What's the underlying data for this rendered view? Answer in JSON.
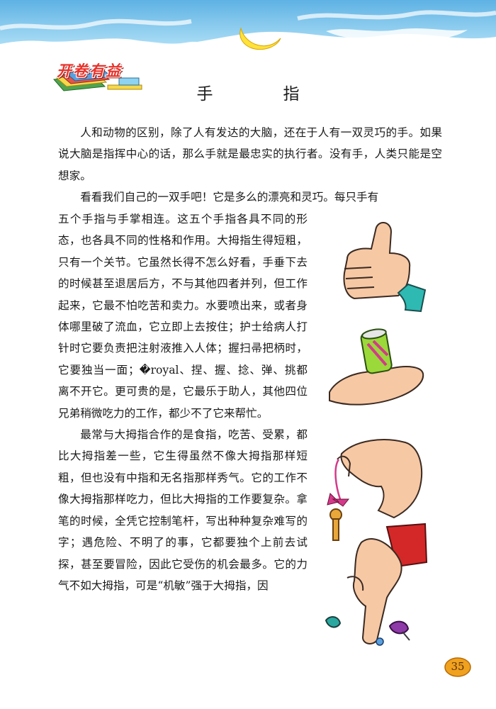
{
  "header": {
    "badge_text": "开卷有益",
    "title": "手　指"
  },
  "content": {
    "paragraphs_full": [
      "人和动物的区别，除了人有发达的大脑，还在于人有一双灵巧的手。如果说大脑是指挥中心的话，那么手就是最忠实的执行者。没有手，人类只能是空想家。",
      "看看我们自己的一双手吧！它是多么的漂亮和灵巧。每只手有"
    ],
    "paragraphs_narrow": [
      "五个手指与手掌相连。这五个手指各具不同的形态，也各具不同的性格和作用。大拇指生得短粗，只有一个关节。它虽然长得不怎么好看，手垂下去的时候甚至退居后方，不与其他四者并列，但工作起来，它最不怕吃苦和卖力。水要喷出来，或者身体哪里破了流血，它立即上去按住；护士给病人打针时它要负责把注射液推入人体；握扫帚把柄时，它要独当一面；�royal、捏、握、捻、弹、挑都离不开它。更可贵的是，它最乐于助人，其他四位兄弟稍微吃力的工作，都少不了它来帮忙。",
      "最常与大拇指合作的是食指，吃苦、受累，都比大拇指差一些，它生得虽然不像大拇指那样短粗，但也没有中指和无名指那样秀气。它的工作不像大拇指那样吃力，但比大拇指的工作要复杂。拿笔的时候，全凭它控制笔杆，写出种种复杂难写的字；遇危险、不明了的事，它都要独个上前去试探，甚至要冒险，因此它受伤的机会最多。它的力气不如大拇指，可是“机敏”强于大拇指，因"
    ]
  },
  "footer": {
    "page_number": "35"
  },
  "colors": {
    "sky": "#6ab9e6",
    "moon": "#ffe23a",
    "badge_red": "#e8322a",
    "page_circle": "#f0a11e"
  },
  "icons": [
    "moon-icon",
    "books-icon",
    "thumbs-up-icon",
    "can-on-palm-icon",
    "fingers-with-key-icon",
    "fingers-with-pushpins-icon"
  ]
}
